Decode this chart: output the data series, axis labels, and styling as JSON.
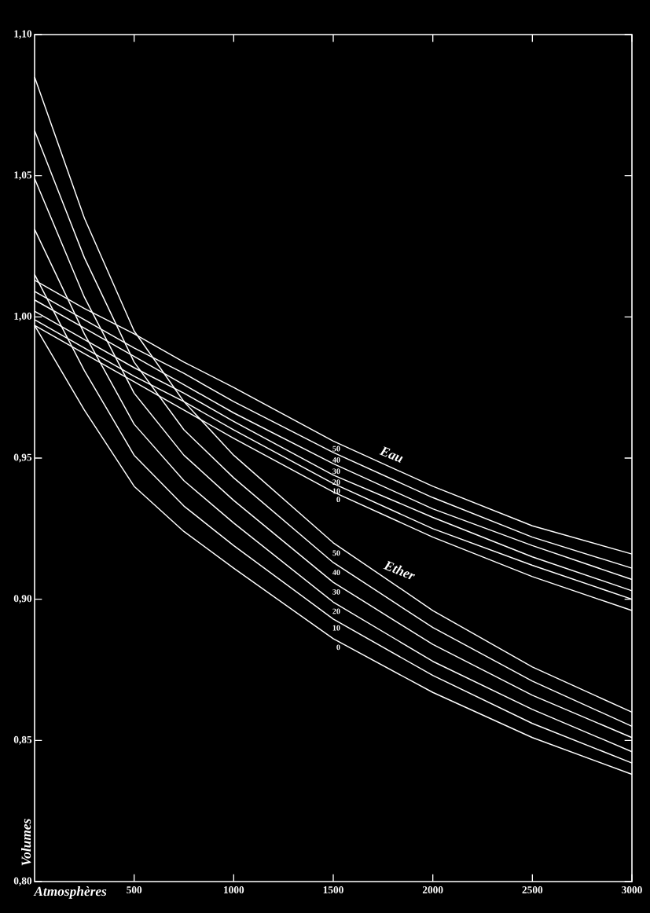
{
  "chart_data": {
    "type": "line",
    "xlabel": "Atmosphères",
    "ylabel": "Volumes",
    "x": [
      0,
      250,
      500,
      750,
      1000,
      1500,
      2000,
      2500,
      3000
    ],
    "xlim": [
      0,
      3000
    ],
    "xticks": [
      500,
      1000,
      1500,
      2000,
      2500,
      3000
    ],
    "ylim": [
      0.8,
      1.1
    ],
    "yticks": [
      {
        "value": 0.8,
        "label": "0,80"
      },
      {
        "value": 0.85,
        "label": "0,85"
      },
      {
        "value": 0.9,
        "label": "0,90"
      },
      {
        "value": 0.95,
        "label": "0,95"
      },
      {
        "value": 1.0,
        "label": "1,00"
      },
      {
        "value": 1.05,
        "label": "1,05"
      },
      {
        "value": 1.1,
        "label": "1,10"
      }
    ],
    "marker": "none",
    "line_style": "solid",
    "series": [
      {
        "name": "0",
        "color": "#ffffff",
        "values": [
          0.997,
          0.987,
          0.977,
          0.967,
          0.957,
          0.938,
          0.922,
          0.908,
          0.896
        ]
      },
      {
        "name": "10",
        "color": "#ffffff",
        "values": [
          0.999,
          0.989,
          0.979,
          0.97,
          0.96,
          0.941,
          0.925,
          0.912,
          0.9
        ]
      },
      {
        "name": "20",
        "color": "#ffffff",
        "values": [
          1.002,
          0.992,
          0.982,
          0.973,
          0.963,
          0.944,
          0.929,
          0.915,
          0.903
        ]
      },
      {
        "name": "30",
        "color": "#ffffff",
        "values": [
          1.006,
          0.996,
          0.986,
          0.976,
          0.966,
          0.948,
          0.932,
          0.919,
          0.907
        ]
      },
      {
        "name": "40",
        "color": "#ffffff",
        "values": [
          1.009,
          0.999,
          0.989,
          0.98,
          0.97,
          0.952,
          0.936,
          0.922,
          0.911
        ]
      },
      {
        "name": "50",
        "color": "#ffffff",
        "values": [
          1.013,
          1.003,
          0.994,
          0.984,
          0.975,
          0.956,
          0.94,
          0.926,
          0.916
        ]
      },
      {
        "name": "0",
        "color": "#ffffff",
        "values": [
          0.997,
          0.967,
          0.94,
          0.924,
          0.911,
          0.886,
          0.867,
          0.851,
          0.838
        ]
      },
      {
        "name": "10",
        "color": "#ffffff",
        "values": [
          1.015,
          0.981,
          0.951,
          0.933,
          0.919,
          0.893,
          0.873,
          0.856,
          0.842
        ]
      },
      {
        "name": "20",
        "color": "#ffffff",
        "values": [
          1.031,
          0.994,
          0.962,
          0.942,
          0.927,
          0.899,
          0.878,
          0.861,
          0.846
        ]
      },
      {
        "name": "30",
        "color": "#ffffff",
        "values": [
          1.049,
          1.007,
          0.973,
          0.951,
          0.935,
          0.906,
          0.884,
          0.866,
          0.851
        ]
      },
      {
        "name": "40",
        "color": "#ffffff",
        "values": [
          1.066,
          1.021,
          0.984,
          0.96,
          0.943,
          0.913,
          0.89,
          0.871,
          0.855
        ]
      },
      {
        "name": "50",
        "color": "#ffffff",
        "values": [
          1.085,
          1.035,
          0.995,
          0.97,
          0.951,
          0.92,
          0.896,
          0.876,
          0.86
        ]
      }
    ],
    "annotations": [
      {
        "text": "Eau",
        "x": 1720,
        "y": 0.949
      },
      {
        "text": "Ether",
        "x": 1740,
        "y": 0.9085
      }
    ]
  }
}
